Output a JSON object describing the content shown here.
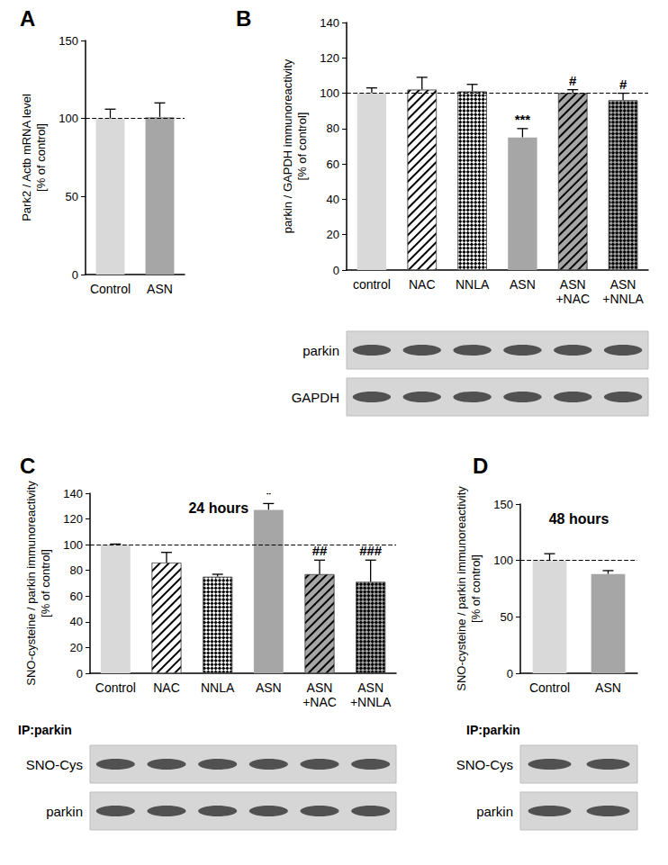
{
  "chart_data": [
    {
      "type": "bar",
      "title": "A",
      "ylabel": [
        "Park2 / Actb mRNA level",
        "[% of control]"
      ],
      "categories": [
        "Control",
        "ASN"
      ],
      "values": [
        100,
        101
      ],
      "errors": [
        6,
        9
      ],
      "annotations": [
        null,
        null
      ],
      "colors": [
        "#d9d9d9",
        "#a6a6a6"
      ],
      "ylim": [
        0,
        150
      ],
      "yticks": [
        0,
        50,
        100,
        150
      ],
      "reference": 100,
      "grid": false
    },
    {
      "type": "bar",
      "title": "B",
      "ylabel": [
        "parkin / GAPDH immunoreactivity",
        "[% of control]"
      ],
      "categories": [
        "control",
        "NAC",
        "NNLA",
        "ASN",
        "ASN +NAC",
        "ASN +NNLA"
      ],
      "values": [
        100,
        102,
        101,
        75,
        100,
        96
      ],
      "errors": [
        3,
        7,
        4,
        5,
        2,
        4
      ],
      "annotations": [
        null,
        null,
        null,
        "***",
        "#",
        "#"
      ],
      "colors": [
        "#d9d9d9",
        "#ffffff",
        "#ffffff",
        "#a6a6a6",
        "#a6a6a6",
        "#a6a6a6"
      ],
      "ylim": [
        0,
        140
      ],
      "yticks": [
        0,
        20,
        40,
        60,
        80,
        100,
        120,
        140
      ],
      "reference": 100,
      "grid": false,
      "blots": [
        "parkin",
        "GAPDH"
      ]
    },
    {
      "type": "bar",
      "title": "C",
      "subtitle": "24 hours",
      "ylabel": [
        "SNO-cysteine / parkin immunoreactivity",
        "[% of control]"
      ],
      "categories": [
        "Control",
        "NAC",
        "NNLA",
        "ASN",
        "ASN +NAC",
        "ASN +NNLA"
      ],
      "values": [
        100,
        86,
        75,
        127,
        77,
        71
      ],
      "errors": [
        0.5,
        8,
        2,
        5,
        11,
        17
      ],
      "annotations": [
        null,
        null,
        null,
        "*",
        "##",
        "###"
      ],
      "colors": [
        "#d9d9d9",
        "#ffffff",
        "#ffffff",
        "#a6a6a6",
        "#a6a6a6",
        "#a6a6a6"
      ],
      "ylim": [
        0,
        140
      ],
      "yticks": [
        0,
        20,
        40,
        60,
        80,
        100,
        120,
        140
      ],
      "reference": 100,
      "grid": false,
      "blot_title": "IP:parkin",
      "blots": [
        "SNO-Cys",
        "parkin"
      ]
    },
    {
      "type": "bar",
      "title": "D",
      "subtitle": "48 hours",
      "ylabel": [
        "SNO-cysteine / parkin immunoreactivity",
        "[% of control]"
      ],
      "categories": [
        "Control",
        "ASN"
      ],
      "values": [
        100,
        88
      ],
      "errors": [
        6,
        3
      ],
      "annotations": [
        null,
        null
      ],
      "colors": [
        "#d9d9d9",
        "#a6a6a6"
      ],
      "ylim": [
        0,
        150
      ],
      "yticks": [
        0,
        50,
        100,
        150
      ],
      "reference": 100,
      "grid": false,
      "blot_title": "IP:parkin",
      "blots": [
        "SNO-Cys",
        "parkin"
      ]
    }
  ]
}
